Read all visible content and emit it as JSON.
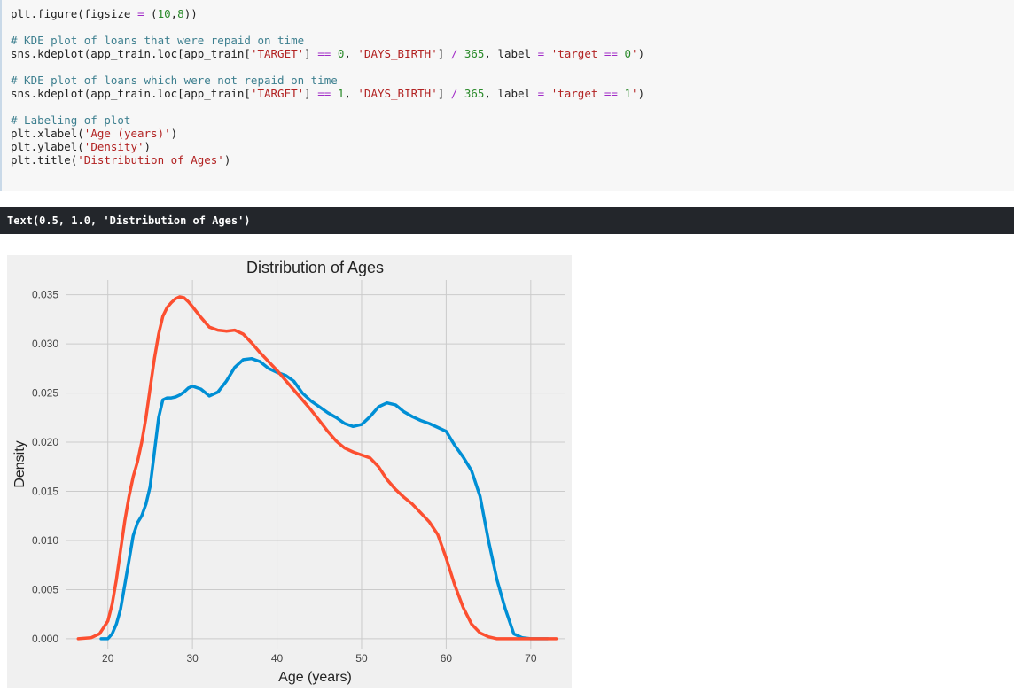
{
  "code_cell": {
    "lines": [
      "plt.figure(figsize = (10,8))",
      "",
      "# KDE plot of loans that were repaid on time",
      "sns.kdeplot(app_train.loc[app_train['TARGET'] == 0, 'DAYS_BIRTH'] / 365, label = 'target == 0')",
      "",
      "# KDE plot of loans which were not repaid on time",
      "sns.kdeplot(app_train.loc[app_train['TARGET'] == 1, 'DAYS_BIRTH'] / 365, label = 'target == 1')",
      "",
      "# Labeling of plot",
      "plt.xlabel('Age (years)')",
      "plt.ylabel('Density')",
      "plt.title('Distribution of Ages')"
    ]
  },
  "output": {
    "text": "Text(0.5, 1.0, 'Distribution of Ages')"
  },
  "chart_data": {
    "type": "line",
    "title": "Distribution of Ages",
    "xlabel": "Age (years)",
    "ylabel": "Density",
    "xlim": [
      15,
      74
    ],
    "ylim": [
      -0.001,
      0.0365
    ],
    "xticks": [
      20,
      30,
      40,
      50,
      60,
      70
    ],
    "yticks": [
      0.0,
      0.005,
      0.01,
      0.015,
      0.02,
      0.025,
      0.03,
      0.035
    ],
    "ytick_labels": [
      "0.000",
      "0.005",
      "0.010",
      "0.015",
      "0.020",
      "0.025",
      "0.030",
      "0.035"
    ],
    "grid": true,
    "background": "#f0f0f0",
    "series": [
      {
        "color": "#008fd5",
        "x": [
          19.2,
          20,
          20.5,
          21,
          21.5,
          22,
          22.5,
          23,
          23.5,
          24,
          24.5,
          25,
          25.5,
          26,
          26.5,
          27,
          27.5,
          28,
          28.5,
          29,
          29.5,
          30,
          31,
          32,
          33,
          34,
          35,
          36,
          37,
          38,
          39,
          40,
          41,
          42,
          43,
          44,
          45,
          46,
          47,
          48,
          49,
          50,
          51,
          52,
          53,
          54,
          55,
          56,
          57,
          58,
          59,
          60,
          61,
          62,
          63,
          64,
          65,
          66,
          67,
          68,
          69,
          70,
          71,
          72
        ],
        "y": [
          0.0,
          0.0,
          0.0005,
          0.0015,
          0.003,
          0.0055,
          0.008,
          0.0105,
          0.0118,
          0.0125,
          0.0137,
          0.0155,
          0.019,
          0.0225,
          0.0243,
          0.0245,
          0.0245,
          0.0246,
          0.0248,
          0.0251,
          0.0255,
          0.0257,
          0.0254,
          0.0247,
          0.0251,
          0.0262,
          0.0276,
          0.0284,
          0.0285,
          0.0282,
          0.0275,
          0.0271,
          0.0268,
          0.0262,
          0.025,
          0.0242,
          0.0236,
          0.023,
          0.0225,
          0.0219,
          0.0216,
          0.0218,
          0.0226,
          0.0236,
          0.024,
          0.0238,
          0.0231,
          0.0226,
          0.0222,
          0.0219,
          0.0215,
          0.0211,
          0.0197,
          0.0185,
          0.0171,
          0.0145,
          0.01,
          0.006,
          0.003,
          0.0005,
          0.0001,
          0.0,
          0.0,
          0.0
        ]
      },
      {
        "color": "#fc4f30",
        "x": [
          16.5,
          18,
          19,
          20,
          20.5,
          21,
          21.5,
          22,
          22.5,
          23,
          23.5,
          24,
          24.5,
          25,
          25.5,
          26,
          26.5,
          27,
          27.5,
          28,
          28.5,
          29,
          29.5,
          30,
          31,
          32,
          33,
          34,
          35,
          36,
          37,
          38,
          39,
          40,
          41,
          42,
          43,
          44,
          45,
          46,
          47,
          48,
          49,
          50,
          51,
          52,
          53,
          54,
          55,
          56,
          57,
          58,
          59,
          60,
          61,
          62,
          63,
          64,
          65,
          66,
          67,
          68,
          69,
          70,
          71,
          72,
          73
        ],
        "y": [
          0.0,
          0.0001,
          0.0005,
          0.0018,
          0.0035,
          0.006,
          0.009,
          0.012,
          0.0145,
          0.0165,
          0.018,
          0.02,
          0.0225,
          0.0255,
          0.0285,
          0.031,
          0.0328,
          0.0337,
          0.0342,
          0.0346,
          0.0348,
          0.0347,
          0.0343,
          0.0338,
          0.0327,
          0.0317,
          0.0314,
          0.0313,
          0.0314,
          0.031,
          0.0301,
          0.0291,
          0.0282,
          0.0273,
          0.0263,
          0.0253,
          0.0243,
          0.0233,
          0.0222,
          0.0211,
          0.0201,
          0.0194,
          0.019,
          0.0187,
          0.0184,
          0.0175,
          0.0162,
          0.0152,
          0.0144,
          0.0137,
          0.0128,
          0.0119,
          0.0106,
          0.0082,
          0.0055,
          0.0032,
          0.0015,
          0.0006,
          0.0002,
          0.0,
          0.0,
          0.0,
          0.0,
          0.0,
          0.0,
          0.0,
          0.0
        ]
      }
    ]
  }
}
